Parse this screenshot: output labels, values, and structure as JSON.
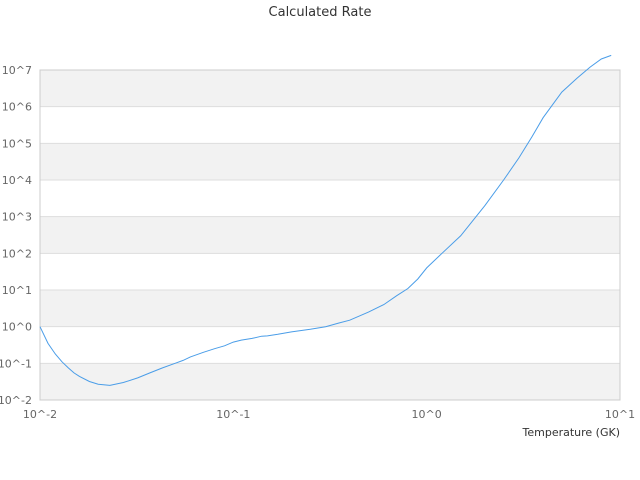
{
  "chart_data": {
    "type": "line",
    "title": "Calculated Rate",
    "xlabel": "Temperature (GK)",
    "ylabel": "",
    "x_scale": "log",
    "y_scale": "log",
    "xlim": [
      0.01,
      10
    ],
    "ylim": [
      0.01,
      10000000
    ],
    "x_ticks": [
      "10^-2",
      "10^-1",
      "10^0",
      "10^1"
    ],
    "y_ticks": [
      "10^-2",
      "10^-1",
      "10^0",
      "10^1",
      "10^2",
      "10^3",
      "10^4",
      "10^5",
      "10^6",
      "10^7"
    ],
    "grid": true,
    "band_fill": true,
    "legend": "none",
    "line_color": "#4a9de8",
    "series": [
      {
        "x": [
          0.01,
          0.011,
          0.012,
          0.013,
          0.014,
          0.015,
          0.016,
          0.018,
          0.02,
          0.023,
          0.027,
          0.032,
          0.037,
          0.043,
          0.05,
          0.055,
          0.06,
          0.07,
          0.08,
          0.09,
          0.1,
          0.11,
          0.125,
          0.14,
          0.15,
          0.17,
          0.2,
          0.25,
          0.3,
          0.35,
          0.4,
          0.5,
          0.6,
          0.7,
          0.8,
          0.9,
          1.0,
          1.2,
          1.5,
          2.0,
          2.5,
          3.0,
          3.5,
          4.0,
          5.0,
          6.0,
          7.0,
          8.0,
          9.0
        ],
        "y": [
          1.0,
          0.35,
          0.18,
          0.11,
          0.075,
          0.055,
          0.044,
          0.032,
          0.027,
          0.025,
          0.03,
          0.04,
          0.055,
          0.075,
          0.1,
          0.12,
          0.15,
          0.2,
          0.25,
          0.3,
          0.38,
          0.43,
          0.48,
          0.55,
          0.56,
          0.62,
          0.72,
          0.85,
          1.0,
          1.25,
          1.5,
          2.5,
          4.0,
          7.0,
          11,
          20,
          40,
          100,
          300,
          2000,
          10000,
          40000,
          150000,
          500000,
          2500000,
          6000000,
          12000000,
          20000000,
          25000000
        ]
      }
    ]
  }
}
